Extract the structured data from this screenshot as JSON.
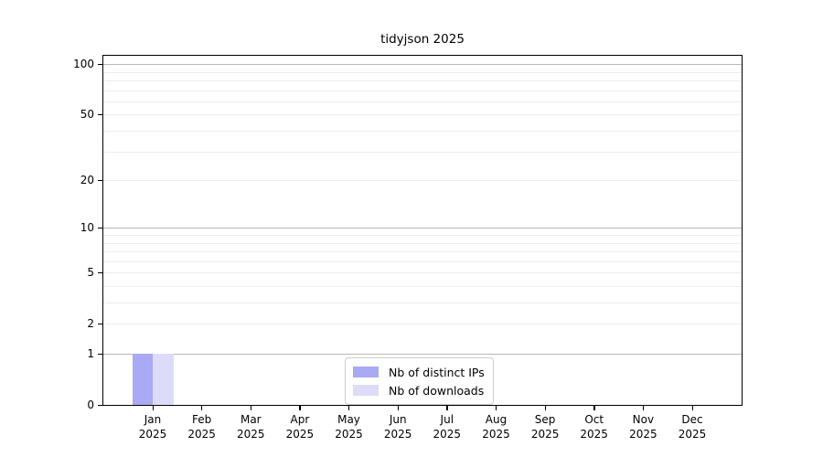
{
  "chart_data": {
    "type": "bar",
    "title": "tidyjson 2025",
    "categories": [
      "Jan",
      "Feb",
      "Mar",
      "Apr",
      "May",
      "Jun",
      "Jul",
      "Aug",
      "Sep",
      "Oct",
      "Nov",
      "Dec"
    ],
    "year_label": "2025",
    "series": [
      {
        "name": "Nb of distinct IPs",
        "color": "#a9a9f4",
        "values": [
          1,
          0,
          0,
          0,
          0,
          0,
          0,
          0,
          0,
          0,
          0,
          0
        ]
      },
      {
        "name": "Nb of downloads",
        "color": "#dcdcf8",
        "values": [
          1,
          0,
          0,
          0,
          0,
          0,
          0,
          0,
          0,
          0,
          0,
          0
        ]
      }
    ],
    "yscale": "log1p",
    "ylim": [
      0,
      112
    ],
    "yticks_labeled": [
      0,
      1,
      2,
      5,
      10,
      20,
      50,
      100
    ],
    "yticks_major_grid": [
      1,
      10,
      100
    ],
    "yticks_minor_grid": [
      2,
      3,
      4,
      5,
      6,
      7,
      8,
      9,
      20,
      30,
      40,
      50,
      60,
      70,
      80,
      90
    ],
    "grid": true,
    "legend": {
      "position": "lower-center-inside",
      "entries": [
        "Nb of distinct IPs",
        "Nb of downloads"
      ]
    },
    "colors": {
      "major_grid": "#b6b6b6",
      "minor_grid": "#ececec",
      "axis": "#000000",
      "background": "#ffffff"
    }
  }
}
